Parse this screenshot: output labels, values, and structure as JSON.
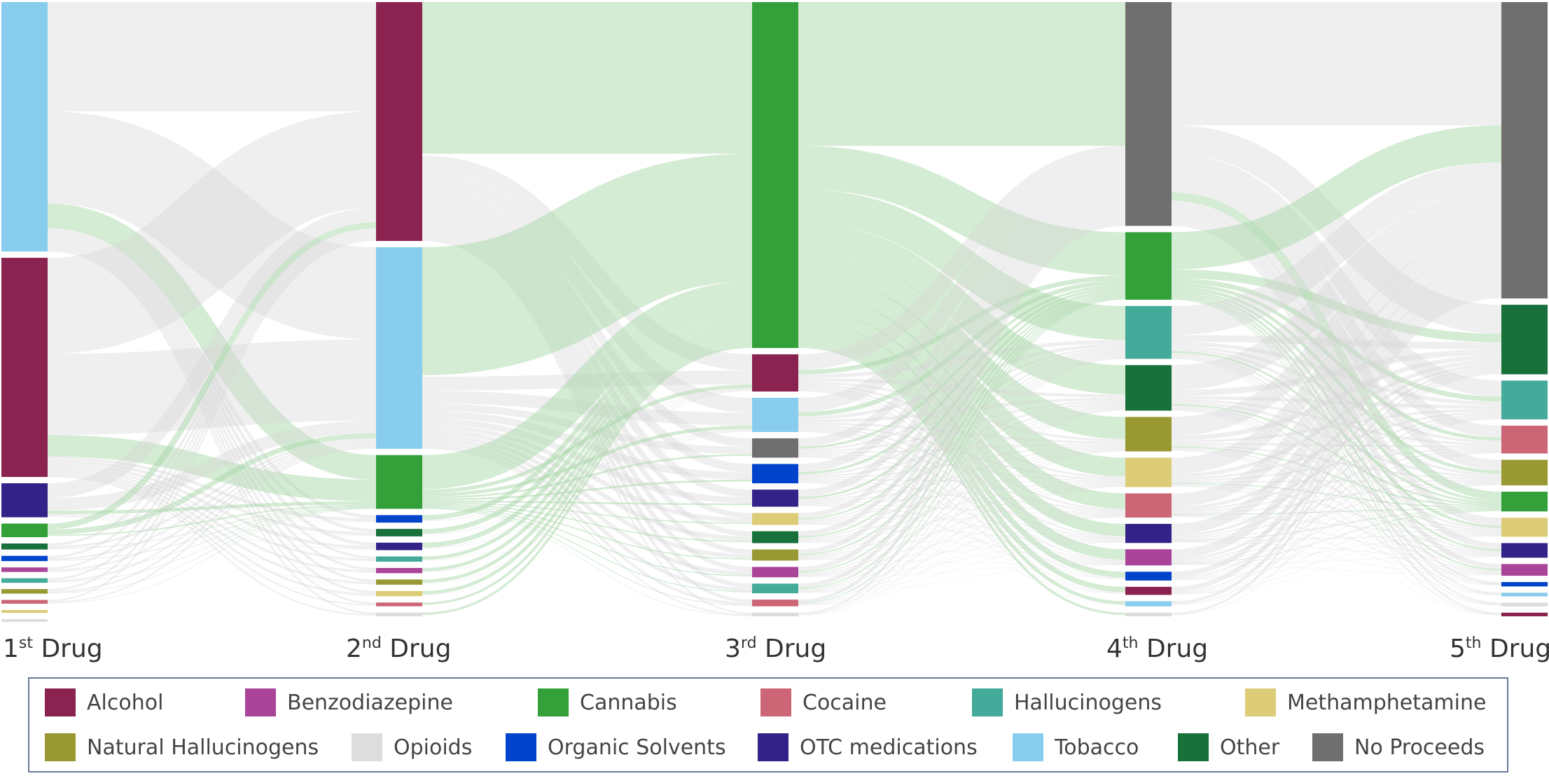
{
  "chart_data": {
    "type": "sankey",
    "stages": [
      {
        "ordinal": "1",
        "suffix": "st",
        "word": "Drug"
      },
      {
        "ordinal": "2",
        "suffix": "nd",
        "word": "Drug"
      },
      {
        "ordinal": "3",
        "suffix": "rd",
        "word": "Drug"
      },
      {
        "ordinal": "4",
        "suffix": "th",
        "word": "Drug"
      },
      {
        "ordinal": "5",
        "suffix": "th",
        "word": "Drug"
      }
    ],
    "categories": [
      {
        "name": "Alcohol",
        "color": "#8a2350"
      },
      {
        "name": "Benzodiazepine",
        "color": "#aa4499"
      },
      {
        "name": "Cannabis",
        "color": "#33a03a"
      },
      {
        "name": "Cocaine",
        "color": "#cc6677"
      },
      {
        "name": "Hallucinogens",
        "color": "#44aa99"
      },
      {
        "name": "Methamphetamine",
        "color": "#ddcc77"
      },
      {
        "name": "Natural Hallucinogens",
        "color": "#999933"
      },
      {
        "name": "Opioids",
        "color": "#dddddd"
      },
      {
        "name": "Organic Solvents",
        "color": "#0044cc"
      },
      {
        "name": "OTC medications",
        "color": "#332288"
      },
      {
        "name": "Tobacco",
        "color": "#88ccee"
      },
      {
        "name": "Other",
        "color": "#18703a"
      },
      {
        "name": "No Proceeds",
        "color": "#6f6f6f"
      }
    ],
    "node_values": [
      {
        "Tobacco": 330,
        "Alcohol": 290,
        "OTC medications": 45,
        "Cannabis": 18,
        "Other": 8,
        "Organic Solvents": 7,
        "Benzodiazepine": 6,
        "Hallucinogens": 6,
        "Natural Hallucinogens": 6,
        "Cocaine": 5,
        "Methamphetamine": 0,
        "Opioids": 0
      },
      {
        "Alcohol": 320,
        "Tobacco": 270,
        "Cannabis": 72,
        "Organic Solvents": 10,
        "Other": 10,
        "OTC medications": 10,
        "Hallucinogens": 7,
        "Benzodiazepine": 7,
        "Natural Hallucinogens": 7,
        "Methamphetamine": 7,
        "Cocaine": 5,
        "Opioids": 5
      },
      {
        "Cannabis": 465,
        "Alcohol": 50,
        "Tobacco": 46,
        "No Proceeds": 26,
        "Organic Solvents": 26,
        "OTC medications": 23,
        "Methamphetamine": 16,
        "Other": 16,
        "Natural Hallucinogens": 15,
        "Benzodiazepine": 14,
        "Hallucinogens": 13,
        "Cocaine": 9,
        "Opioids": 5
      },
      {
        "No Proceeds": 305,
        "Cannabis": 92,
        "Hallucinogens": 72,
        "Other": 62,
        "Natural Hallucinogens": 47,
        "Methamphetamine": 40,
        "Cocaine": 33,
        "OTC medications": 26,
        "Benzodiazepine": 22,
        "Organic Solvents": 12,
        "Alcohol": 11,
        "Tobacco": 7,
        "Opioids": 5
      },
      {
        "No Proceeds": 405,
        "Other": 95,
        "Hallucinogens": 53,
        "Cocaine": 38,
        "Natural Hallucinogens": 35,
        "Cannabis": 27,
        "Methamphetamine": 26,
        "OTC medications": 20,
        "Benzodiazepine": 16,
        "Organic Solvents": 6,
        "Tobacco": 5,
        "Opioids": 5,
        "Alcohol": 5
      }
    ]
  },
  "legend": {
    "items": [
      {
        "label": "Alcohol",
        "color": "#8a2350"
      },
      {
        "label": "Benzodiazepine",
        "color": "#aa4499"
      },
      {
        "label": "Cannabis",
        "color": "#33a03a"
      },
      {
        "label": "Cocaine",
        "color": "#cc6677"
      },
      {
        "label": "Hallucinogens",
        "color": "#44aa99"
      },
      {
        "label": "Methamphetamine",
        "color": "#ddcc77"
      },
      {
        "label": "Natural Hallucinogens",
        "color": "#999933"
      },
      {
        "label": "Opioids",
        "color": "#dddddd"
      },
      {
        "label": "Organic Solvents",
        "color": "#0044cc"
      },
      {
        "label": "OTC medications",
        "color": "#332288"
      },
      {
        "label": "Tobacco",
        "color": "#88ccee"
      },
      {
        "label": "Other",
        "color": "#18703a"
      },
      {
        "label": "No Proceeds",
        "color": "#6f6f6f"
      }
    ]
  }
}
